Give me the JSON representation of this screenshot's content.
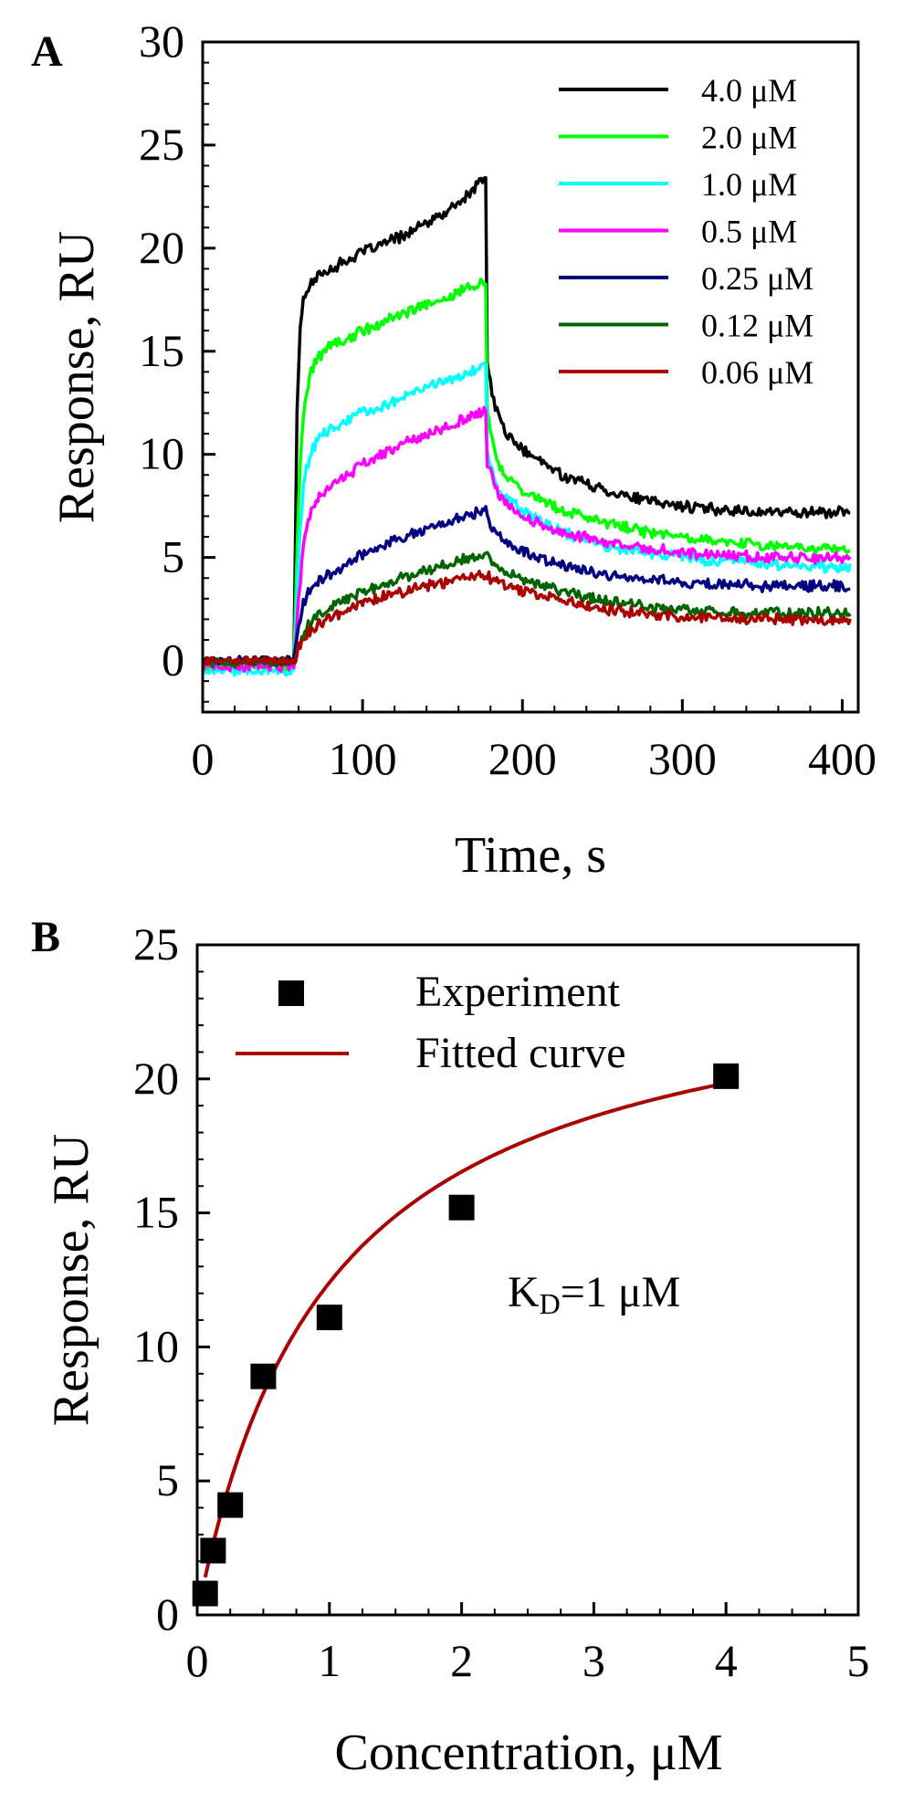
{
  "chart_data": [
    {
      "panel_label": "A",
      "type": "line",
      "title": "",
      "xlabel": "Time, s",
      "ylabel": "Response, RU",
      "xlim": [
        0,
        410
      ],
      "ylim": [
        -2.5,
        30
      ],
      "xticks": [
        0,
        100,
        200,
        300,
        400
      ],
      "yticks": [
        0,
        5,
        10,
        15,
        20,
        25,
        30
      ],
      "grid": false,
      "legend": "top-right",
      "injection_start": 57,
      "injection_end": 177,
      "series": [
        {
          "name": "4.0 μM",
          "color": "#000000",
          "baseline": 0.0,
          "inj": [
            [
              57,
              0
            ],
            [
              59,
              12
            ],
            [
              61,
              16
            ],
            [
              63,
              17.5
            ],
            [
              66,
              18.2
            ],
            [
              75,
              18.8
            ],
            [
              100,
              19.8
            ],
            [
              125,
              20.6
            ],
            [
              150,
              21.6
            ],
            [
              165,
              22.5
            ],
            [
              176,
              23.4
            ]
          ],
          "dis": [
            [
              177,
              23.4
            ],
            [
              178,
              14.5
            ],
            [
              182,
              12.5
            ],
            [
              190,
              11.0
            ],
            [
              200,
              10.2
            ],
            [
              225,
              9.0
            ],
            [
              250,
              8.3
            ],
            [
              280,
              7.7
            ],
            [
              310,
              7.4
            ],
            [
              350,
              7.2
            ],
            [
              405,
              7.2
            ]
          ]
        },
        {
          "name": "2.0 μM",
          "color": "#00ff00",
          "baseline": -0.3,
          "inj": [
            [
              57,
              -0.3
            ],
            [
              60,
              8
            ],
            [
              63,
              12
            ],
            [
              67,
              14.0
            ],
            [
              75,
              15.0
            ],
            [
              100,
              16.0
            ],
            [
              125,
              16.8
            ],
            [
              150,
              17.5
            ],
            [
              176,
              18.4
            ]
          ],
          "dis": [
            [
              177,
              18.4
            ],
            [
              178,
              12.0
            ],
            [
              185,
              9.5
            ],
            [
              200,
              8.2
            ],
            [
              225,
              7.3
            ],
            [
              250,
              6.7
            ],
            [
              280,
              6.2
            ],
            [
              310,
              5.9
            ],
            [
              350,
              5.6
            ],
            [
              405,
              5.4
            ]
          ]
        },
        {
          "name": "1.0 μM",
          "color": "#00ffff",
          "baseline": -0.5,
          "inj": [
            [
              57,
              -0.5
            ],
            [
              60,
              5
            ],
            [
              63,
              8.5
            ],
            [
              67,
              10.0
            ],
            [
              75,
              11.0
            ],
            [
              100,
              12.0
            ],
            [
              125,
              12.8
            ],
            [
              150,
              13.5
            ],
            [
              176,
              14.2
            ]
          ],
          "dis": [
            [
              177,
              14.2
            ],
            [
              178,
              10.0
            ],
            [
              185,
              8.2
            ],
            [
              200,
              7.2
            ],
            [
              225,
              6.2
            ],
            [
              250,
              5.6
            ],
            [
              280,
              5.2
            ],
            [
              310,
              4.9
            ],
            [
              350,
              4.7
            ],
            [
              405,
              4.5
            ]
          ]
        },
        {
          "name": "0.5 μM",
          "color": "#ff00ff",
          "baseline": -0.3,
          "inj": [
            [
              57,
              -0.3
            ],
            [
              60,
              3
            ],
            [
              63,
              5.5
            ],
            [
              67,
              7.0
            ],
            [
              75,
              8.2
            ],
            [
              100,
              9.5
            ],
            [
              125,
              10.5
            ],
            [
              150,
              11.3
            ],
            [
              176,
              12.1
            ]
          ],
          "dis": [
            [
              177,
              12.1
            ],
            [
              178,
              9.5
            ],
            [
              185,
              8.0
            ],
            [
              200,
              7.0
            ],
            [
              225,
              6.2
            ],
            [
              250,
              5.8
            ],
            [
              280,
              5.4
            ],
            [
              310,
              5.2
            ],
            [
              350,
              5.0
            ],
            [
              405,
              5.0
            ]
          ]
        },
        {
          "name": "0.25 μM",
          "color": "#000080",
          "baseline": 0.0,
          "inj": [
            [
              57,
              0
            ],
            [
              60,
              1.8
            ],
            [
              63,
              2.8
            ],
            [
              67,
              3.4
            ],
            [
              75,
              4.0
            ],
            [
              100,
              5.2
            ],
            [
              125,
              6.0
            ],
            [
              150,
              6.6
            ],
            [
              176,
              7.3
            ]
          ],
          "dis": [
            [
              177,
              7.3
            ],
            [
              180,
              6.5
            ],
            [
              190,
              5.8
            ],
            [
              200,
              5.3
            ],
            [
              225,
              4.6
            ],
            [
              250,
              4.2
            ],
            [
              280,
              3.9
            ],
            [
              310,
              3.7
            ],
            [
              350,
              3.6
            ],
            [
              405,
              3.6
            ]
          ]
        },
        {
          "name": "0.12 μM",
          "color": "#006400",
          "baseline": -0.1,
          "inj": [
            [
              57,
              -0.1
            ],
            [
              60,
              0.8
            ],
            [
              64,
              1.5
            ],
            [
              70,
              2.0
            ],
            [
              80,
              2.6
            ],
            [
              100,
              3.3
            ],
            [
              125,
              4.0
            ],
            [
              150,
              4.6
            ],
            [
              176,
              5.2
            ]
          ],
          "dis": [
            [
              177,
              5.2
            ],
            [
              182,
              4.6
            ],
            [
              190,
              4.3
            ],
            [
              200,
              4.0
            ],
            [
              225,
              3.4
            ],
            [
              250,
              2.9
            ],
            [
              280,
              2.6
            ],
            [
              310,
              2.4
            ],
            [
              350,
              2.3
            ],
            [
              405,
              2.3
            ]
          ]
        },
        {
          "name": "0.06 μM",
          "color": "#aa0000",
          "baseline": 0.0,
          "inj": [
            [
              57,
              0
            ],
            [
              60,
              0.6
            ],
            [
              64,
              1.1
            ],
            [
              70,
              1.6
            ],
            [
              80,
              2.1
            ],
            [
              100,
              2.8
            ],
            [
              125,
              3.3
            ],
            [
              150,
              3.8
            ],
            [
              176,
              4.2
            ]
          ],
          "dis": [
            [
              177,
              4.2
            ],
            [
              182,
              3.8
            ],
            [
              190,
              3.6
            ],
            [
              200,
              3.4
            ],
            [
              225,
              2.9
            ],
            [
              250,
              2.5
            ],
            [
              280,
              2.2
            ],
            [
              310,
              2.1
            ],
            [
              350,
              2.0
            ],
            [
              405,
              1.9
            ]
          ]
        }
      ]
    },
    {
      "panel_label": "B",
      "type": "scatter",
      "title": "",
      "xlabel": "Concentration, μM",
      "ylabel": "Response, RU",
      "xlim": [
        0,
        5
      ],
      "ylim": [
        0,
        25
      ],
      "xticks": [
        0,
        1,
        2,
        3,
        4,
        5
      ],
      "yticks": [
        0,
        5,
        10,
        15,
        20,
        25
      ],
      "grid": false,
      "legend": "top-left",
      "annotation": {
        "text": "K",
        "sub": "D",
        "rest": "=1 μM"
      },
      "series": [
        {
          "name": "Experiment",
          "color": "#000000",
          "marker": "square",
          "x": [
            0.06,
            0.12,
            0.25,
            0.5,
            1.0,
            2.0,
            4.0
          ],
          "y": [
            0.8,
            2.4,
            4.1,
            8.9,
            11.1,
            15.2,
            20.1
          ]
        },
        {
          "name": "Fitted curve",
          "color": "#aa0000",
          "marker": "line",
          "fit": {
            "model": "Rmax*C/(KD+C)",
            "Rmax": 24.8,
            "KD": 1.0,
            "x_range": [
              0.06,
              4.0
            ]
          }
        }
      ]
    }
  ]
}
